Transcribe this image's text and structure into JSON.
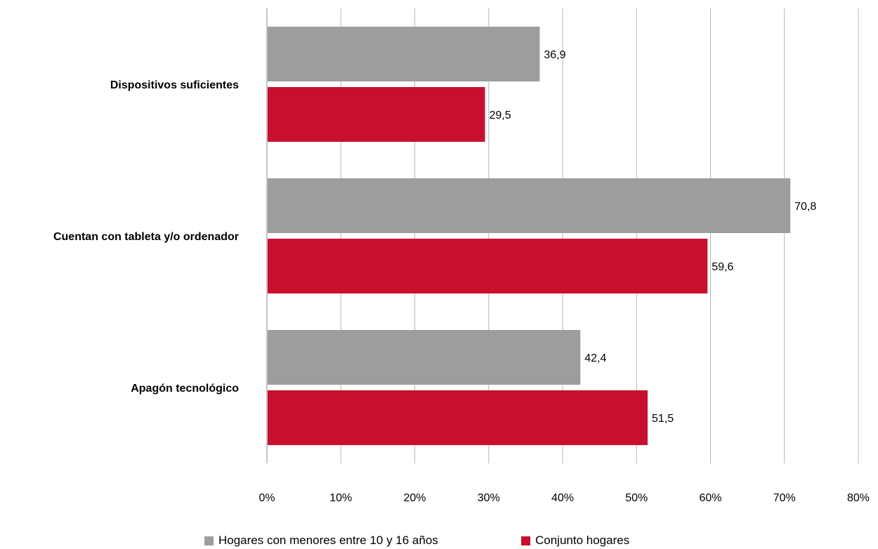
{
  "chart_data": {
    "type": "bar",
    "orientation": "horizontal",
    "categories": [
      "Dispositivos suficientes",
      "Cuentan con tableta y/o ordenador",
      "Apagón tecnológico"
    ],
    "series": [
      {
        "name": "Hogares con menores entre 10 y 16 años",
        "color": "#9d9d9c",
        "values": [
          36.9,
          70.8,
          42.4
        ],
        "labels": [
          "36,9",
          "70,8",
          "42,4"
        ]
      },
      {
        "name": "Conjunto hogares",
        "color": "#c8102e",
        "values": [
          29.5,
          59.6,
          51.5
        ],
        "labels": [
          "29,5",
          "59,6",
          "51,5"
        ]
      }
    ],
    "xlim": [
      0,
      80
    ],
    "xticks": [
      0,
      10,
      20,
      30,
      40,
      50,
      60,
      70,
      80
    ],
    "xtick_labels": [
      "0%",
      "10%",
      "20%",
      "30%",
      "40%",
      "50%",
      "60%",
      "70%",
      "80%"
    ],
    "grid": "vertical",
    "legend_position": "bottom"
  }
}
